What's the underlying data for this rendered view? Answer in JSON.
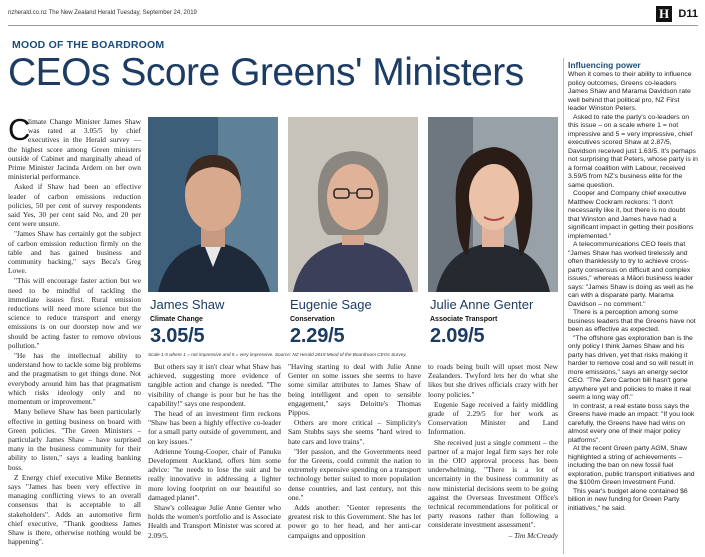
{
  "header": {
    "url_line": "nzherald.co.nz  The New Zealand Herald  Tuesday, September 24, 2019",
    "logo_letter": "H",
    "page_number": "D11"
  },
  "section_label": "MOOD OF THE BOARDROOM",
  "headline": "CEOs Score Greens' Ministers",
  "ministers": [
    {
      "name": "James Shaw",
      "portfolio": "Climate Change",
      "score": "3.05/5"
    },
    {
      "name": "Eugenie Sage",
      "portfolio": "Conservation",
      "score": "2.29/5"
    },
    {
      "name": "Julie Anne Genter",
      "portfolio": "Associate Transport",
      "score": "2.09/5"
    }
  ],
  "scale_note": "Scale 1-5 where 1 = not impressive and 5 = very impressive. Source: NZ Herald 2019 Mood of the Boardroom CEOs Survey.",
  "article": {
    "dropcap": "C",
    "col1": [
      "limate Change Minister James Shaw was rated at 3.05/5 by chief executives in the Herald survey — the highest score among Green ministers outside of Cabinet and marginally ahead of Prime Minister Jacinda Ardern on her own ministerial performance.",
      "Asked if Shaw had been an effective leader of carbon emissions reduction policies, 50 per cent of survey respondents said Yes, 30 per cent said No, and 20 per cent were unsure.",
      "\"James Shaw has certainly got the subject of carbon emission reduction firmly on the table and has gained business and community backing,\" says Beca's Greg Lowe.",
      "\"This will encourage faster action but we need to be mindful of tackling the immediate issues first. Rural emission reductions will need more science but the science to reduce transport and energy emissions is on our doorstep now and we should be acting faster to remove obvious pollution.\"",
      "\"He has the intellectual ability to understand how to tackle some big problems and the pragmatism to get things done. Not everybody around him has that pragmatism which risks ideology only and no momentum or improvement.\"",
      "Many believe Shaw has been particularly effective in getting business on board with Green policies. \"The Green Ministers – particularly James Shaw – have surprised many in the business community for their ability to listen,\" says a leading banking boss.",
      "Z Energy chief executive Mike Bennetts says \"James has been very effective in managing conflicting views to an overall consensus that is acceptable to all stakeholders\". Adds an automotive firm chief executive, \"Thank goodness James Shaw is there, otherwise nothing would be happening\"."
    ],
    "col2": [
      "But others say it isn't clear what Shaw has achieved, suggesting more evidence of tangible action and change is needed. \"The visibility of change is poor but he has the capability!\" says one respondent.",
      "The head of an investment firm reckons \"Shaw has been a highly effective co-leader for a small party outside of government, and on key issues.\"",
      "Adrienne Young-Cooper, chair of Panuku Development Auckland, offers him some advice: \"he needs to lose the suit and be really innovative in addressing a lighter more loving footprint on our beautiful so damaged planet\".",
      "Shaw's colleague Julie Anne Genter who holds the women's portfolio and is Associate Health and Transport Minister was scored at 2.09/5."
    ],
    "col3": [
      "\"Having starting to deal with Julie Anne Genter on some issues she seems to have some similar attributes to James Shaw of being intelligent and open to sensible engagement,\" says Deloitte's Thomas Pippos.",
      "Others are more critical – Simplicity's Sam Stubbs says she seems \"hard wired to hate cars and love trains\".",
      "\"Her passion, and the Governments need for the Greens, could commit the nation to extremely expensive spending on a transport technology better suited to more population dense countries, and last century, not this one.\"",
      "Adds another: \"Genter represents the greatest risk to this Government. She has let power go to her head, and her anti-car campaigns and opposition"
    ],
    "col4": [
      "to roads being built will upset most New Zealanders. Twyford lets her do what she likes but she drives officials crazy with her loony policies.\"",
      "Eugenie Sage received a fairly middling grade of 2.29/5 for her work as Conservation Minister and Land Information.",
      "She received just a single comment – the partner of a major legal firm says her role in the OIO approval process has been underwhelming. \"There is a lot of uncertainty in the business community as now ministerial decisions seem to be going against the Overseas Investment Office's technical recommendations for political or party reasons rather than following a considerate investment assessment\"."
    ],
    "byline": "– Tim McCready"
  },
  "sidebar": {
    "title": "Influencing power",
    "paragraphs": [
      "When it comes to their ability to influence policy outcomes, Greens co-leaders James Shaw and Marama Davidson rate well behind that political pro, NZ First leader Winston Peters.",
      "Asked to rate the party's co-leaders on this issue – on a scale where 1 = not impressive and 5 = very impressive, chief executives scored Shaw at 2.87/5, Davidson received just 1.63/5. It's perhaps not surprising that Peters, whose party is in a formal coalition with Labour, received 3.59/5 from NZ's business elite for the same question.",
      "Cooper and Company chief executive Matthew Cockram reckons: \"I don't necessarily like it, but there is no doubt that Winston and James have had a significant impact in getting their positions implemented.\"",
      "A telecommunications CEO feels that \"James Shaw has worked tirelessly and often thanklessly to try to achieve cross-party consensus on difficult and complex issues,\" whereas a Māori business leader says: \"James Shaw is doing as well as he can with a disparate party. Marama Davidson – no comment.\"",
      "There is a perception among some business leaders that the Greens have not been as effective as expected.",
      "\"The offshore gas exploration ban is the only policy I think James Shaw and his party has driven, yet that risks making it harder to remove coal and so will result in more emissions,\" says an energy sector CEO. \"The Zero Carbon bill hasn't gone anywhere yet and policies to make it real seem a long way off.\"",
      "In contrast, a real estate boss says the Greens have made an impact: \"If you look carefully, the Greens have had wins on almost every one of their major policy platforms\".",
      "At the recent Green party AGM, Shaw highlighted a string of achievements – including the ban on new fossil fuel exploration, public transport initiatives and the $100m Green Investment Fund.",
      "This year's budget alone contained $6 billion in new funding for Green Party initiatives,\" he said."
    ]
  }
}
